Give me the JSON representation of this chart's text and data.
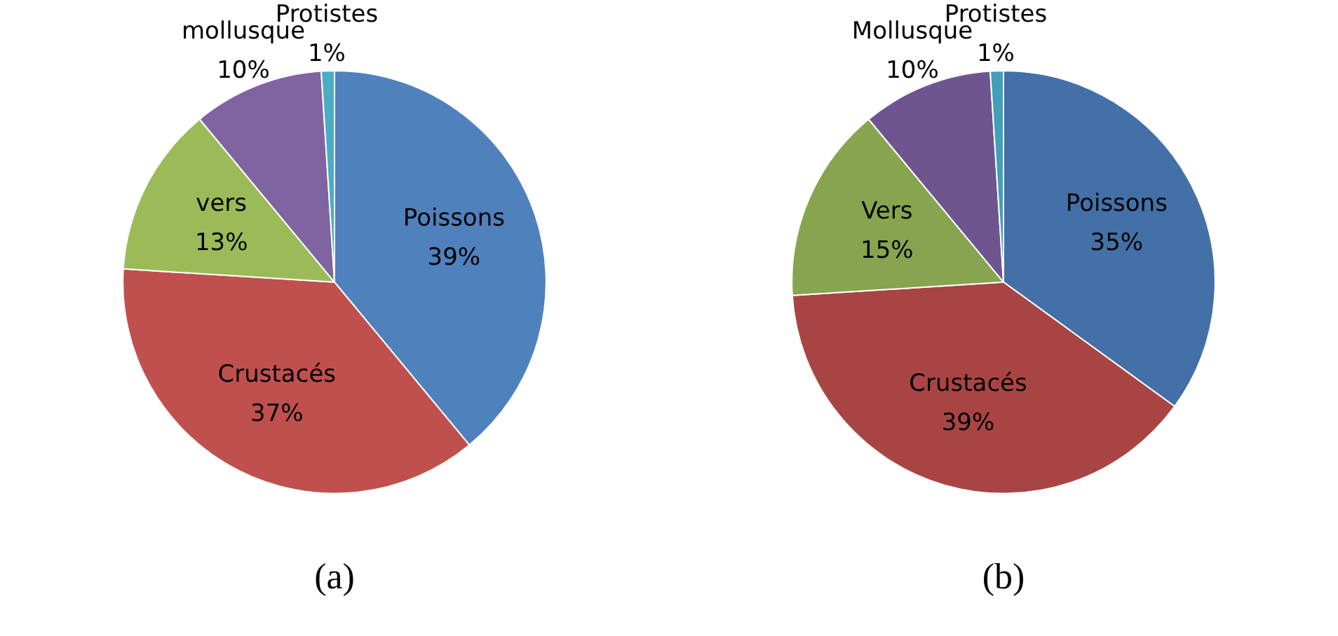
{
  "chart_data": [
    {
      "type": "pie",
      "title": "(a)",
      "categories": [
        "Poissons",
        "Crustacés",
        "vers",
        "mollusque",
        "Protistes"
      ],
      "values": [
        39,
        37,
        13,
        10,
        1
      ],
      "value_labels": [
        "39%",
        "37%",
        "13%",
        "10%",
        "1%"
      ],
      "colors": [
        "#4f81bd",
        "#c0504d",
        "#9bbb59",
        "#8064a2",
        "#4bacc6"
      ]
    },
    {
      "type": "pie",
      "title": "(b)",
      "categories": [
        "Poissons",
        "Crustacés",
        "Vers",
        "Mollusque",
        "Protistes"
      ],
      "values": [
        35,
        39,
        15,
        10,
        1
      ],
      "value_labels": [
        "35%",
        "39%",
        "15%",
        "10%",
        "1%"
      ],
      "colors": [
        "#4470a8",
        "#a84543",
        "#87a44f",
        "#6f5590",
        "#3fa0b8"
      ]
    }
  ]
}
